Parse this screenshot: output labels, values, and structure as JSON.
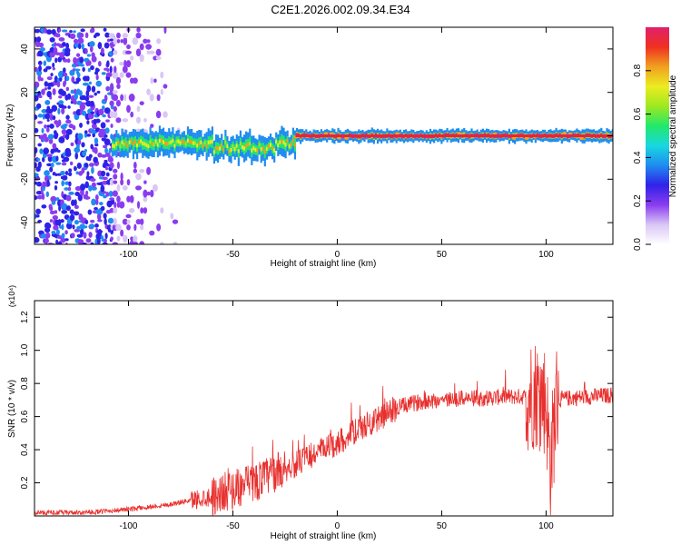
{
  "figure_title": "C2E1.2026.002.09.34.E34",
  "colors": {
    "snr_line": "#e8302e",
    "ridge": "#e6233f",
    "axis": "#000000"
  },
  "colormap": [
    "#ffffff",
    "#d9c7f5",
    "#8a3cf0",
    "#2f22e8",
    "#1f8cf0",
    "#18d8e0",
    "#22e86a",
    "#9ee820",
    "#ecec20",
    "#f0a020",
    "#f03020",
    "#e0206a"
  ],
  "chart_data": [
    {
      "type": "heatmap",
      "title": "",
      "xlabel": "Height of straight line (km)",
      "ylabel": "Frequency (Hz)",
      "xlim": [
        -145,
        132
      ],
      "ylim": [
        -50,
        50
      ],
      "x_ticks": [
        -100,
        -50,
        0,
        50,
        100
      ],
      "y_ticks": [
        -40,
        -20,
        0,
        20,
        40
      ],
      "grid": false,
      "colorbar": {
        "label": "Normalized spectral amplitude",
        "range": [
          0,
          1
        ],
        "ticks": [
          "0.0",
          "0.2",
          "0.4",
          "0.6",
          "0.8"
        ]
      },
      "description_regions": {
        "noise_region_x": [
          -145,
          -108
        ],
        "scatter_region_x": [
          -108,
          -75
        ],
        "ridge_x": [
          -108,
          132
        ],
        "ridge_center_freq": 0
      }
    },
    {
      "type": "line",
      "title": "",
      "xlabel": "Height of straight line (km)",
      "ylabel": "SNR (10 * v/v)",
      "y_multiplier": "(x10⁴)",
      "xlim": [
        -145,
        132
      ],
      "ylim": [
        0,
        1.3
      ],
      "x_ticks": [
        -100,
        -50,
        0,
        50,
        100
      ],
      "y_ticks": [
        "0.2",
        "0.4",
        "0.6",
        "0.8",
        "1.0",
        "1.2"
      ],
      "grid": false,
      "series": [
        {
          "trend_x": [
            -145,
            -120,
            -100,
            -80,
            -60,
            -50,
            -40,
            -30,
            -20,
            -10,
            0,
            10,
            20,
            30,
            40,
            50,
            60,
            70,
            80,
            90,
            95,
            100,
            102,
            105,
            110,
            120,
            132
          ],
          "trend_y": [
            0.02,
            0.02,
            0.04,
            0.07,
            0.12,
            0.16,
            0.2,
            0.26,
            0.31,
            0.38,
            0.44,
            0.52,
            0.59,
            0.66,
            0.69,
            0.7,
            0.71,
            0.71,
            0.72,
            0.72,
            0.75,
            0.7,
            0.3,
            0.7,
            0.71,
            0.72,
            0.73
          ]
        }
      ]
    }
  ]
}
